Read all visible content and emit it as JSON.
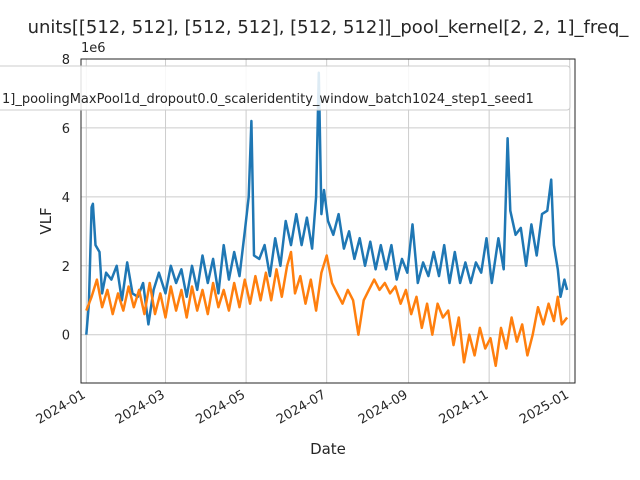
{
  "chart_data": {
    "type": "line",
    "title": "units[[512, 512], [512, 512], [512, 512]]_pool_kernel[2, 2, 1]_freq_",
    "xlabel": "Date",
    "ylabel": "VLF",
    "y_multiplier_label": "1e6",
    "x_range": [
      "2023-12-28",
      "2025-01-05"
    ],
    "ylim": [
      -1400000,
      8000000
    ],
    "x_ticks": [
      "2024-01",
      "2024-03",
      "2024-05",
      "2024-07",
      "2024-09",
      "2024-11",
      "2025-01"
    ],
    "x_tick_dates": [
      "2024-01-01",
      "2024-03-01",
      "2024-05-01",
      "2024-07-01",
      "2024-09-01",
      "2024-11-01",
      "2025-01-01"
    ],
    "y_ticks": [
      0,
      2,
      4,
      6,
      8
    ],
    "y_tick_values": [
      0,
      2000000,
      4000000,
      6000000,
      8000000
    ],
    "grid": true,
    "legend_position": "top",
    "legend_text": "1]_poolingMaxPool1d_dropout0.0_scaleridentity_window_batch1024_step1_seed1",
    "series": [
      {
        "color": "#1f77b4",
        "points": [
          [
            "2024-01-01",
            0
          ],
          [
            "2024-01-03",
            900000
          ],
          [
            "2024-01-05",
            3700000
          ],
          [
            "2024-01-06",
            3800000
          ],
          [
            "2024-01-08",
            2600000
          ],
          [
            "2024-01-11",
            2400000
          ],
          [
            "2024-01-13",
            1200000
          ],
          [
            "2024-01-16",
            1800000
          ],
          [
            "2024-01-20",
            1600000
          ],
          [
            "2024-01-24",
            2000000
          ],
          [
            "2024-01-28",
            1000000
          ],
          [
            "2024-02-01",
            2100000
          ],
          [
            "2024-02-05",
            1200000
          ],
          [
            "2024-02-09",
            1100000
          ],
          [
            "2024-02-13",
            1500000
          ],
          [
            "2024-02-17",
            300000
          ],
          [
            "2024-02-21",
            1300000
          ],
          [
            "2024-02-25",
            1800000
          ],
          [
            "2024-03-01",
            1200000
          ],
          [
            "2024-03-05",
            2000000
          ],
          [
            "2024-03-09",
            1500000
          ],
          [
            "2024-03-13",
            1900000
          ],
          [
            "2024-03-17",
            1100000
          ],
          [
            "2024-03-21",
            2000000
          ],
          [
            "2024-03-25",
            1300000
          ],
          [
            "2024-03-29",
            2300000
          ],
          [
            "2024-04-02",
            1500000
          ],
          [
            "2024-04-06",
            2200000
          ],
          [
            "2024-04-10",
            1200000
          ],
          [
            "2024-04-14",
            2600000
          ],
          [
            "2024-04-18",
            1600000
          ],
          [
            "2024-04-22",
            2400000
          ],
          [
            "2024-04-26",
            1700000
          ],
          [
            "2024-04-30",
            3000000
          ],
          [
            "2024-05-03",
            4000000
          ],
          [
            "2024-05-05",
            6200000
          ],
          [
            "2024-05-07",
            2300000
          ],
          [
            "2024-05-11",
            2200000
          ],
          [
            "2024-05-15",
            2600000
          ],
          [
            "2024-05-19",
            1700000
          ],
          [
            "2024-05-23",
            2800000
          ],
          [
            "2024-05-27",
            2000000
          ],
          [
            "2024-05-31",
            3300000
          ],
          [
            "2024-06-04",
            2600000
          ],
          [
            "2024-06-08",
            3500000
          ],
          [
            "2024-06-12",
            2600000
          ],
          [
            "2024-06-16",
            3400000
          ],
          [
            "2024-06-20",
            2500000
          ],
          [
            "2024-06-23",
            4000000
          ],
          [
            "2024-06-25",
            7600000
          ],
          [
            "2024-06-27",
            3500000
          ],
          [
            "2024-06-29",
            4200000
          ],
          [
            "2024-07-02",
            3300000
          ],
          [
            "2024-07-06",
            2900000
          ],
          [
            "2024-07-10",
            3500000
          ],
          [
            "2024-07-14",
            2500000
          ],
          [
            "2024-07-18",
            3000000
          ],
          [
            "2024-07-22",
            2200000
          ],
          [
            "2024-07-26",
            2800000
          ],
          [
            "2024-07-30",
            2000000
          ],
          [
            "2024-08-03",
            2700000
          ],
          [
            "2024-08-07",
            1900000
          ],
          [
            "2024-08-11",
            2600000
          ],
          [
            "2024-08-15",
            1900000
          ],
          [
            "2024-08-19",
            2600000
          ],
          [
            "2024-08-23",
            1600000
          ],
          [
            "2024-08-27",
            2200000
          ],
          [
            "2024-08-31",
            1800000
          ],
          [
            "2024-09-04",
            3200000
          ],
          [
            "2024-09-08",
            1500000
          ],
          [
            "2024-09-12",
            2100000
          ],
          [
            "2024-09-16",
            1700000
          ],
          [
            "2024-09-20",
            2400000
          ],
          [
            "2024-09-24",
            1700000
          ],
          [
            "2024-09-28",
            2600000
          ],
          [
            "2024-10-02",
            1500000
          ],
          [
            "2024-10-06",
            2400000
          ],
          [
            "2024-10-10",
            1500000
          ],
          [
            "2024-10-14",
            2100000
          ],
          [
            "2024-10-18",
            1500000
          ],
          [
            "2024-10-22",
            2100000
          ],
          [
            "2024-10-26",
            1800000
          ],
          [
            "2024-10-30",
            2800000
          ],
          [
            "2024-11-03",
            1500000
          ],
          [
            "2024-11-08",
            2800000
          ],
          [
            "2024-11-12",
            1900000
          ],
          [
            "2024-11-15",
            5700000
          ],
          [
            "2024-11-17",
            3600000
          ],
          [
            "2024-11-21",
            2900000
          ],
          [
            "2024-11-25",
            3100000
          ],
          [
            "2024-11-29",
            2000000
          ],
          [
            "2024-12-03",
            3200000
          ],
          [
            "2024-12-07",
            2300000
          ],
          [
            "2024-12-11",
            3500000
          ],
          [
            "2024-12-15",
            3600000
          ],
          [
            "2024-12-18",
            4500000
          ],
          [
            "2024-12-20",
            2600000
          ],
          [
            "2024-12-23",
            1900000
          ],
          [
            "2024-12-25",
            1100000
          ],
          [
            "2024-12-28",
            1600000
          ],
          [
            "2024-12-30",
            1300000
          ]
        ]
      },
      {
        "color": "#ff7f0e",
        "points": [
          [
            "2024-01-01",
            700000
          ],
          [
            "2024-01-05",
            1100000
          ],
          [
            "2024-01-09",
            1600000
          ],
          [
            "2024-01-13",
            800000
          ],
          [
            "2024-01-17",
            1300000
          ],
          [
            "2024-01-21",
            600000
          ],
          [
            "2024-01-25",
            1200000
          ],
          [
            "2024-01-29",
            700000
          ],
          [
            "2024-02-02",
            1400000
          ],
          [
            "2024-02-06",
            800000
          ],
          [
            "2024-02-10",
            1300000
          ],
          [
            "2024-02-14",
            600000
          ],
          [
            "2024-02-18",
            1500000
          ],
          [
            "2024-02-22",
            600000
          ],
          [
            "2024-02-26",
            1200000
          ],
          [
            "2024-03-01",
            500000
          ],
          [
            "2024-03-05",
            1400000
          ],
          [
            "2024-03-09",
            700000
          ],
          [
            "2024-03-13",
            1300000
          ],
          [
            "2024-03-17",
            500000
          ],
          [
            "2024-03-21",
            1400000
          ],
          [
            "2024-03-25",
            700000
          ],
          [
            "2024-03-29",
            1300000
          ],
          [
            "2024-04-02",
            600000
          ],
          [
            "2024-04-06",
            1500000
          ],
          [
            "2024-04-10",
            800000
          ],
          [
            "2024-04-14",
            1300000
          ],
          [
            "2024-04-18",
            700000
          ],
          [
            "2024-04-22",
            1500000
          ],
          [
            "2024-04-26",
            800000
          ],
          [
            "2024-04-30",
            1600000
          ],
          [
            "2024-05-04",
            900000
          ],
          [
            "2024-05-08",
            1700000
          ],
          [
            "2024-05-12",
            1000000
          ],
          [
            "2024-05-16",
            1800000
          ],
          [
            "2024-05-20",
            1000000
          ],
          [
            "2024-05-24",
            1900000
          ],
          [
            "2024-05-28",
            1100000
          ],
          [
            "2024-06-01",
            2000000
          ],
          [
            "2024-06-04",
            2400000
          ],
          [
            "2024-06-07",
            1200000
          ],
          [
            "2024-06-11",
            1700000
          ],
          [
            "2024-06-15",
            900000
          ],
          [
            "2024-06-19",
            1600000
          ],
          [
            "2024-06-23",
            700000
          ],
          [
            "2024-06-27",
            1800000
          ],
          [
            "2024-07-01",
            2300000
          ],
          [
            "2024-07-05",
            1500000
          ],
          [
            "2024-07-09",
            1200000
          ],
          [
            "2024-07-13",
            900000
          ],
          [
            "2024-07-17",
            1300000
          ],
          [
            "2024-07-21",
            1000000
          ],
          [
            "2024-07-25",
            0
          ],
          [
            "2024-07-29",
            1000000
          ],
          [
            "2024-08-02",
            1300000
          ],
          [
            "2024-08-06",
            1600000
          ],
          [
            "2024-08-10",
            1300000
          ],
          [
            "2024-08-14",
            1500000
          ],
          [
            "2024-08-18",
            1200000
          ],
          [
            "2024-08-22",
            1400000
          ],
          [
            "2024-08-26",
            900000
          ],
          [
            "2024-08-30",
            1300000
          ],
          [
            "2024-09-03",
            600000
          ],
          [
            "2024-09-07",
            1100000
          ],
          [
            "2024-09-11",
            200000
          ],
          [
            "2024-09-15",
            900000
          ],
          [
            "2024-09-19",
            0
          ],
          [
            "2024-09-23",
            900000
          ],
          [
            "2024-09-27",
            500000
          ],
          [
            "2024-10-01",
            700000
          ],
          [
            "2024-10-05",
            -300000
          ],
          [
            "2024-10-09",
            500000
          ],
          [
            "2024-10-13",
            -800000
          ],
          [
            "2024-10-17",
            0
          ],
          [
            "2024-10-21",
            -600000
          ],
          [
            "2024-10-25",
            200000
          ],
          [
            "2024-10-29",
            -400000
          ],
          [
            "2024-11-02",
            -100000
          ],
          [
            "2024-11-06",
            -900000
          ],
          [
            "2024-11-10",
            200000
          ],
          [
            "2024-11-14",
            -400000
          ],
          [
            "2024-11-18",
            500000
          ],
          [
            "2024-11-22",
            -200000
          ],
          [
            "2024-11-26",
            300000
          ],
          [
            "2024-11-30",
            -600000
          ],
          [
            "2024-12-04",
            0
          ],
          [
            "2024-12-08",
            800000
          ],
          [
            "2024-12-12",
            300000
          ],
          [
            "2024-12-16",
            900000
          ],
          [
            "2024-12-20",
            400000
          ],
          [
            "2024-12-23",
            1100000
          ],
          [
            "2024-12-26",
            300000
          ],
          [
            "2024-12-30",
            500000
          ]
        ]
      }
    ]
  }
}
